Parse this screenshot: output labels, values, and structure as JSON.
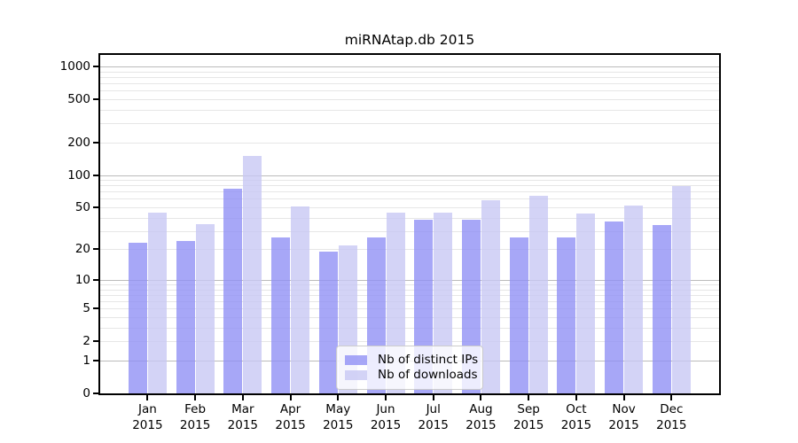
{
  "chart_data": {
    "type": "bar",
    "title": "miRNAtap.db 2015",
    "categories": [
      "Jan 2015",
      "Feb 2015",
      "Mar 2015",
      "Apr 2015",
      "May 2015",
      "Jun 2015",
      "Jul 2015",
      "Aug 2015",
      "Sep 2015",
      "Oct 2015",
      "Nov 2015",
      "Dec 2015"
    ],
    "series": [
      {
        "name": "Nb of distinct IPs",
        "color": "rgba(145,145,245,0.8)",
        "values": [
          23,
          24,
          75,
          26,
          19,
          26,
          38,
          38,
          26,
          26,
          37,
          34
        ]
      },
      {
        "name": "Nb of downloads",
        "color": "rgba(200,200,244,0.8)",
        "values": [
          45,
          35,
          150,
          51,
          22,
          45,
          45,
          58,
          64,
          44,
          52,
          79
        ]
      }
    ],
    "yscale": "symlog",
    "yticks": [
      0,
      1,
      2,
      5,
      10,
      20,
      50,
      100,
      200,
      500,
      1000
    ],
    "major_gridlines": [
      1,
      10,
      100,
      1000
    ],
    "minor_gridlines": [
      2,
      3,
      4,
      5,
      6,
      7,
      8,
      9,
      20,
      30,
      40,
      50,
      60,
      70,
      80,
      90,
      200,
      300,
      400,
      500,
      600,
      700,
      800,
      900
    ],
    "ylim": [
      0,
      1280
    ],
    "xlabel": "",
    "ylabel": "",
    "grid": "on",
    "legend_position": "lower center",
    "colors": {
      "major_grid": "#bbbbbb",
      "minor_grid": "#e6e6e6",
      "spine": "#000000",
      "background": "#ffffff"
    }
  }
}
